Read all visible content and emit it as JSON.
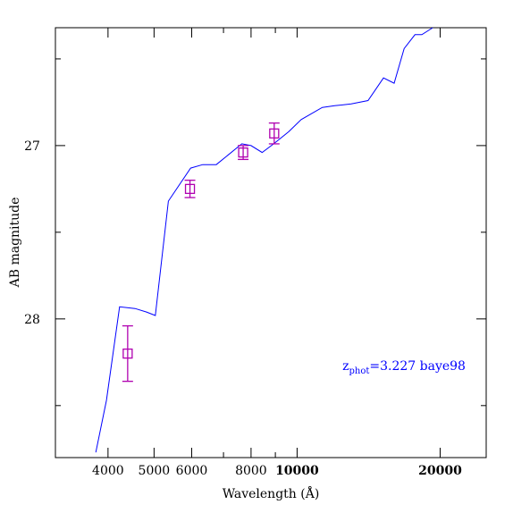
{
  "chart_data": {
    "type": "scatter",
    "title": "",
    "xlabel": "Wavelength (Å)",
    "ylabel": "AB magnitude",
    "x_scale": "log",
    "xlim": [
      3100,
      25000
    ],
    "ylim": [
      28.8,
      26.32
    ],
    "y_inverted": true,
    "grid": false,
    "x_major_ticks": [
      4000,
      5000,
      6000,
      8000,
      10000,
      20000
    ],
    "x_major_tick_labels": [
      "4000",
      "5000",
      "6000",
      "8000",
      "10000",
      "20000"
    ],
    "x_bold_labels": [
      "10000",
      "20000"
    ],
    "x_minor_ticks": [
      3000,
      7000,
      9000,
      30000
    ],
    "y_major_ticks": [
      27,
      28
    ],
    "y_major_tick_labels": [
      "27",
      "28"
    ],
    "y_minor_ticks": [
      26.5,
      27.5,
      28.5
    ],
    "series": [
      {
        "name": "",
        "kind": "line",
        "color": "#0000ff",
        "x": [
          3770,
          3970,
          4230,
          4560,
          4820,
          5030,
          5360,
          5970,
          6330,
          6760,
          7650,
          8000,
          8440,
          8930,
          9600,
          10200,
          11300,
          12000,
          13000,
          14100,
          15200,
          16000,
          16800,
          17700,
          18300,
          19300
        ],
        "y": [
          28.77,
          28.47,
          27.93,
          27.94,
          27.96,
          27.98,
          27.32,
          27.13,
          27.11,
          27.11,
          26.99,
          27.0,
          27.04,
          26.99,
          26.92,
          26.85,
          26.78,
          26.77,
          26.76,
          26.74,
          26.61,
          26.64,
          26.44,
          26.36,
          26.36,
          26.32
        ]
      },
      {
        "name": "",
        "kind": "points_with_errorbars",
        "color": "#b000b0",
        "marker": "open-square",
        "x": [
          4400,
          5950,
          7700,
          8950
        ],
        "y": [
          28.2,
          27.25,
          27.04,
          26.93
        ],
        "yerr": [
          0.16,
          0.05,
          0.04,
          0.06
        ]
      }
    ],
    "annotations": [
      {
        "text_prefix": "z",
        "text_subscript": "phot",
        "text_suffix": "=3.227 baye98",
        "color": "#0000ff",
        "x": 14000,
        "y": 28.27
      }
    ]
  }
}
